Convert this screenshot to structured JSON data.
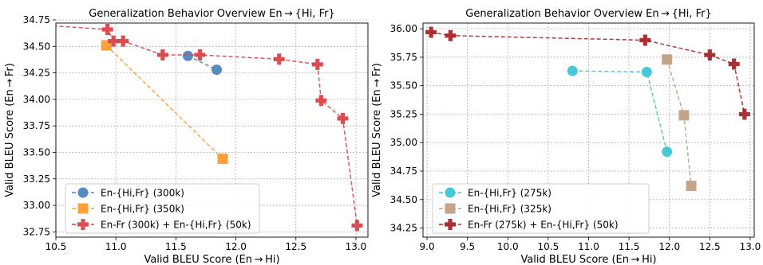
{
  "chart_data": [
    {
      "type": "line",
      "title": "Generalization Behavior Overview En → {Hi, Fr}",
      "xlabel": "Valid BLEU Score (En → Hi)",
      "ylabel": "Valid BLEU Score (En → Fr)",
      "xlim": [
        10.5,
        13.1
      ],
      "ylim": [
        32.7,
        34.72
      ],
      "xticks": [
        "10.5",
        "11.0",
        "11.5",
        "12.0",
        "12.5",
        "13.0"
      ],
      "yticks": [
        "32.75",
        "33.00",
        "33.25",
        "33.50",
        "33.75",
        "34.00",
        "34.25",
        "34.50",
        "34.75"
      ],
      "grid": true,
      "legend_position": "lower-left",
      "series": [
        {
          "name": "En-{Hi,Fr} (300k)",
          "color": "#4f86bd",
          "marker": "circle",
          "x": [
            11.6,
            11.84
          ],
          "y": [
            34.41,
            34.28
          ]
        },
        {
          "name": "En-{Hi,Fr} (350k)",
          "color": "#ff9b2e",
          "marker": "square",
          "x": [
            10.92,
            11.89
          ],
          "y": [
            34.51,
            33.44
          ]
        },
        {
          "name": "En-Fr (300k) + En-{Hi,Fr} (50k)",
          "color": "#d9444a",
          "marker": "plus",
          "x": [
            10.0,
            10.93,
            10.98,
            11.06,
            11.39,
            11.7,
            12.36,
            12.68,
            12.71,
            12.89,
            13.01
          ],
          "y": [
            34.73,
            34.66,
            34.55,
            34.55,
            34.42,
            34.42,
            34.38,
            34.33,
            33.99,
            33.82,
            32.81
          ]
        }
      ]
    },
    {
      "type": "line",
      "title": "Generalization Behavior Overview En → {Hi, Fr}",
      "xlabel": "Valid BLEU Score (En → Hi)",
      "ylabel": "Valid BLEU Score (En → Fr)",
      "xlim": [
        8.95,
        13.05
      ],
      "ylim": [
        34.17,
        36.05
      ],
      "xticks": [
        "9.0",
        "9.5",
        "10.0",
        "10.5",
        "11.0",
        "11.5",
        "12.0",
        "12.5",
        "13.0"
      ],
      "yticks": [
        "34.25",
        "34.50",
        "34.75",
        "35.00",
        "35.25",
        "35.50",
        "35.75",
        "36.00"
      ],
      "grid": true,
      "legend_position": "lower-left",
      "series": [
        {
          "name": "En-{Hi,Fr} (275k)",
          "color": "#3ec5d6",
          "marker": "circle",
          "x": [
            10.8,
            11.72,
            11.97
          ],
          "y": [
            35.63,
            35.62,
            34.92
          ]
        },
        {
          "name": "En-{Hi,Fr} (325k)",
          "color": "#bfa085",
          "marker": "square",
          "x": [
            11.97,
            12.18,
            12.27
          ],
          "y": [
            35.73,
            35.24,
            34.62
          ]
        },
        {
          "name": "En-Fr (275k) + En-{Hi,Fr} (50k)",
          "color": "#a3272b",
          "marker": "plus",
          "x": [
            9.05,
            9.29,
            11.7,
            12.5,
            12.8,
            12.93
          ],
          "y": [
            35.97,
            35.94,
            35.9,
            35.77,
            35.69,
            35.25
          ]
        }
      ]
    }
  ]
}
